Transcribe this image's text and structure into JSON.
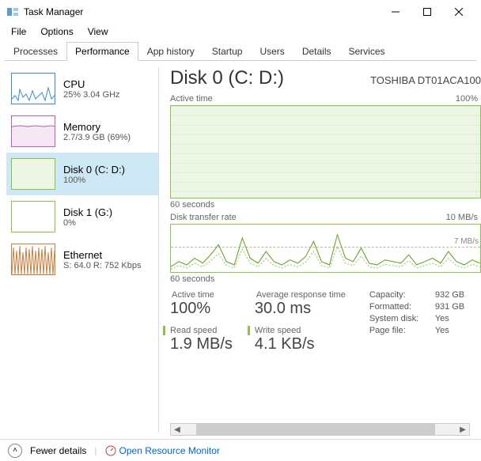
{
  "window": {
    "title": "Task Manager",
    "icon_color1": "#5b9bd5",
    "icon_color2": "#a5c8e8"
  },
  "menus": [
    "File",
    "Options",
    "View"
  ],
  "tabs": [
    "Processes",
    "Performance",
    "App history",
    "Startup",
    "Users",
    "Details",
    "Services"
  ],
  "active_tab_index": 1,
  "sidebar": [
    {
      "name": "CPU",
      "sub": "25% 3.04 GHz",
      "thumb_type": "cpu",
      "color": "#3b8bd0"
    },
    {
      "name": "Memory",
      "sub": "2.7/3.9 GB (69%)",
      "thumb_type": "memory",
      "color": "#b85db8",
      "fill": "#f3e8f3"
    },
    {
      "name": "Disk 0 (C: D:)",
      "sub": "100%",
      "thumb_type": "disk",
      "color": "#8bc34a",
      "fill": "#edf5e4",
      "selected": true
    },
    {
      "name": "Disk 1 (G:)",
      "sub": "0%",
      "thumb_type": "disk_idle",
      "color": "#8bc34a"
    },
    {
      "name": "Ethernet",
      "sub": "S: 64.0 R: 752 Kbps",
      "thumb_type": "ethernet",
      "color": "#c08040"
    }
  ],
  "main": {
    "title": "Disk 0 (C: D:)",
    "model": "TOSHIBA DT01ACA100",
    "chart1": {
      "top_left": "Active time",
      "top_right": "100%",
      "bottom_left": "60 seconds",
      "border_color": "#8bc34a",
      "fill_color": "#edf5e4",
      "grid_color": "#e0ecd4",
      "full": true
    },
    "chart2": {
      "top_left": "Disk transfer rate",
      "top_right": "10 MB/s",
      "inner_right": "7 MB/s",
      "bottom_left": "60 seconds",
      "border_color": "#8bc34a",
      "line_color": "#60a020",
      "points": [
        5,
        8,
        6,
        10,
        7,
        12,
        18,
        8,
        6,
        22,
        10,
        7,
        14,
        8,
        6,
        9,
        7,
        11,
        20,
        8,
        6,
        24,
        10,
        8,
        16,
        7,
        6,
        9,
        8,
        7,
        12,
        6,
        8,
        10,
        7,
        14,
        8,
        6,
        9,
        7
      ]
    },
    "stats": {
      "active_time": {
        "label": "Active time",
        "value": "100%"
      },
      "avg_response": {
        "label": "Average response time",
        "value": "30.0 ms"
      },
      "read_speed": {
        "label": "Read speed",
        "value": "1.9 MB/s"
      },
      "write_speed": {
        "label": "Write speed",
        "value": "4.1 KB/s"
      },
      "props": [
        {
          "k": "Capacity:",
          "v": "932 GB"
        },
        {
          "k": "Formatted:",
          "v": "931 GB"
        },
        {
          "k": "System disk:",
          "v": "Yes"
        },
        {
          "k": "Page file:",
          "v": "Yes"
        }
      ]
    }
  },
  "footer": {
    "fewer": "Fewer details",
    "resource_monitor": "Open Resource Monitor"
  }
}
